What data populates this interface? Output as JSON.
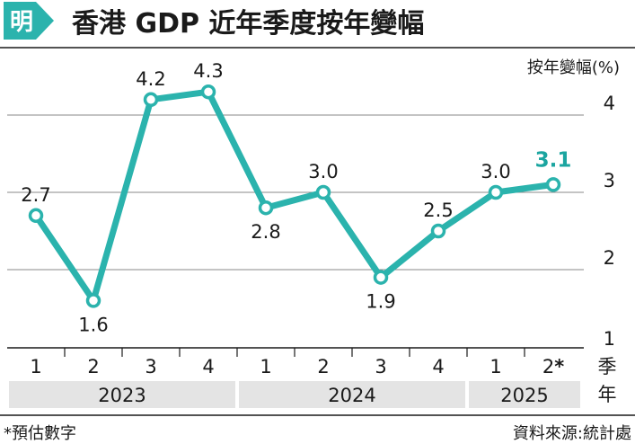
{
  "logo_text": "明",
  "title": "香港 GDP 近年季度按年變幅",
  "chart_data": {
    "type": "line",
    "ylabel": "按年變幅(%)",
    "ylim": [
      1,
      4.5
    ],
    "yticks": [
      1,
      2,
      3,
      4
    ],
    "grid": true,
    "x_axis_label": "季年",
    "quarters": [
      "1",
      "2",
      "3",
      "4",
      "1",
      "2",
      "3",
      "4",
      "1",
      "2*"
    ],
    "years": [
      {
        "label": "2023",
        "start": 0,
        "end": 3
      },
      {
        "label": "2024",
        "start": 4,
        "end": 7
      },
      {
        "label": "2025",
        "start": 8,
        "end": 9
      }
    ],
    "values": [
      2.7,
      1.6,
      4.2,
      4.3,
      2.8,
      3.0,
      1.9,
      2.5,
      3.0,
      3.1
    ],
    "value_labels": [
      "2.7",
      "1.6",
      "4.2",
      "4.3",
      "2.8",
      "3.0",
      "1.9",
      "2.5",
      "3.0",
      "3.1"
    ],
    "highlight_index": 9,
    "line_color": "#2bb3ad",
    "highlight_color": "#1ba5a0"
  },
  "footnote": "*預估數字",
  "source": "資料來源:統計處",
  "colors": {
    "band": "#e4e4e4",
    "grid": "#8a8a8a"
  }
}
